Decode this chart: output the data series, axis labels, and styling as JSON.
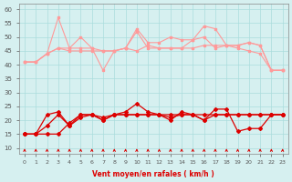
{
  "x": [
    0,
    1,
    2,
    3,
    4,
    5,
    6,
    7,
    8,
    9,
    10,
    11,
    12,
    13,
    14,
    15,
    16,
    17,
    18,
    19,
    20,
    21,
    22,
    23
  ],
  "series_pink_1": [
    41,
    41,
    44,
    57,
    46,
    50,
    46,
    38,
    45,
    46,
    53,
    48,
    48,
    50,
    49,
    49,
    54,
    53,
    47,
    47,
    48,
    47,
    38,
    38
  ],
  "series_pink_2": [
    41,
    41,
    44,
    46,
    46,
    46,
    46,
    45,
    45,
    46,
    45,
    47,
    46,
    46,
    46,
    46,
    47,
    47,
    47,
    46,
    45,
    44,
    38,
    38
  ],
  "series_pink_3": [
    41,
    41,
    44,
    46,
    45,
    45,
    45,
    45,
    45,
    46,
    52,
    46,
    46,
    46,
    46,
    49,
    50,
    46,
    47,
    47,
    48,
    47,
    38,
    38
  ],
  "series_red_1": [
    15,
    15,
    22,
    23,
    18,
    21,
    22,
    20,
    22,
    23,
    26,
    23,
    22,
    20,
    23,
    22,
    20,
    24,
    24,
    16,
    17,
    17,
    22,
    22
  ],
  "series_red_2": [
    15,
    15,
    15,
    15,
    19,
    22,
    22,
    21,
    22,
    22,
    22,
    22,
    22,
    22,
    22,
    22,
    22,
    22,
    22,
    22,
    22,
    22,
    22,
    22
  ],
  "series_red_3": [
    15,
    15,
    18,
    22,
    18,
    22,
    22,
    20,
    22,
    22,
    22,
    22,
    22,
    21,
    22,
    22,
    20,
    22,
    22,
    22,
    22,
    22,
    22,
    22
  ],
  "arrows": [
    0,
    1,
    2,
    3,
    4,
    5,
    6,
    7,
    8,
    9,
    10,
    11,
    12,
    13,
    14,
    15,
    16,
    17,
    18,
    19,
    20,
    21,
    22,
    23
  ],
  "bg_color": "#d6f0f0",
  "grid_color": "#aadddd",
  "pink_color": "#ff9999",
  "red_color": "#dd0000",
  "xlabel": "Vent moyen/en rafales ( km/h )",
  "ylabel_ticks": [
    10,
    15,
    20,
    25,
    30,
    35,
    40,
    45,
    50,
    55,
    60
  ],
  "ylim": [
    8,
    62
  ],
  "xlim": [
    -0.5,
    23.5
  ]
}
